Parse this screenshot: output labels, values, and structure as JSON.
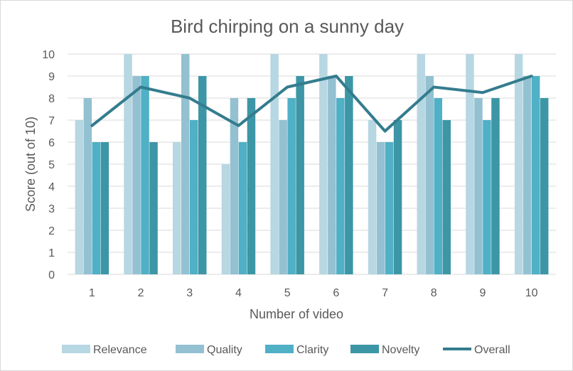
{
  "chart_data": {
    "type": "bar",
    "title": "Bird chirping on a sunny day",
    "xlabel": "Number  of video",
    "ylabel": "Score (out of 10)",
    "categories": [
      "1",
      "2",
      "3",
      "4",
      "5",
      "6",
      "7",
      "8",
      "9",
      "10"
    ],
    "ylim": [
      0,
      10
    ],
    "yticks": [
      "0",
      "1",
      "2",
      "3",
      "4",
      "5",
      "6",
      "7",
      "8",
      "9",
      "10"
    ],
    "grid": true,
    "legend_position": "bottom",
    "series": [
      {
        "name": "Relevance",
        "type": "bar",
        "color": "#b7d7e2",
        "values": [
          7,
          10,
          6,
          5,
          10,
          10,
          7,
          10,
          10,
          10
        ]
      },
      {
        "name": "Quality",
        "type": "bar",
        "color": "#93c1d1",
        "values": [
          8,
          9,
          10,
          8,
          7,
          9,
          6,
          9,
          8,
          9
        ]
      },
      {
        "name": "Clarity",
        "type": "bar",
        "color": "#4fb0c6",
        "values": [
          6,
          9,
          7,
          6,
          8,
          8,
          6,
          8,
          7,
          9
        ]
      },
      {
        "name": "Novelty",
        "type": "bar",
        "color": "#3c96a6",
        "values": [
          6,
          6,
          9,
          8,
          9,
          9,
          7,
          7,
          8,
          8
        ]
      },
      {
        "name": "Overall",
        "type": "line",
        "color": "#347c8e",
        "values": [
          6.75,
          8.5,
          8,
          6.75,
          8.5,
          9,
          6.5,
          8.5,
          8.25,
          9
        ]
      }
    ]
  }
}
